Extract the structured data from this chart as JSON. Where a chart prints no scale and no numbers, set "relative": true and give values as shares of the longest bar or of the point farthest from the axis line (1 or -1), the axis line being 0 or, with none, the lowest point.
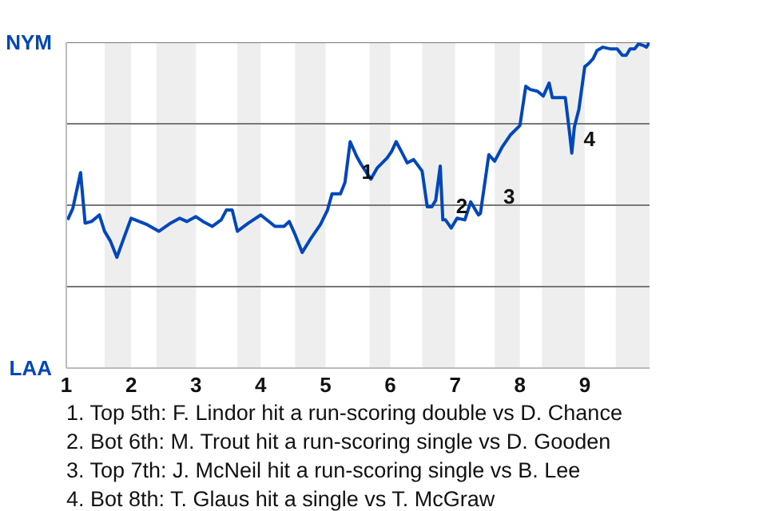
{
  "chart_data": {
    "type": "line",
    "relative": true,
    "xlim": [
      1,
      10
    ],
    "xticks": [
      1,
      2,
      3,
      4,
      5,
      6,
      7,
      8,
      9
    ],
    "marker": "none",
    "line_style": "solid",
    "ref_lines": [
      {
        "axis": "y",
        "value": 0.25,
        "color": "#777777"
      },
      {
        "axis": "y",
        "value": 0.5,
        "color": "#777777"
      },
      {
        "axis": "y",
        "value": 0.75,
        "color": "#777777"
      },
      {
        "axis": "y",
        "value": 1,
        "color": "#777777"
      }
    ],
    "bands": [
      {
        "axis": "x",
        "from": 1.59,
        "to": 2,
        "color": "#eeeeee"
      },
      {
        "axis": "x",
        "from": 2.39,
        "to": 3,
        "color": "#eeeeee"
      },
      {
        "axis": "x",
        "from": 3.64,
        "to": 4,
        "color": "#eeeeee"
      },
      {
        "axis": "x",
        "from": 4.53,
        "to": 5,
        "color": "#eeeeee"
      },
      {
        "axis": "x",
        "from": 5.68,
        "to": 6,
        "color": "#eeeeee"
      },
      {
        "axis": "x",
        "from": 6.49,
        "to": 7,
        "color": "#eeeeee"
      },
      {
        "axis": "x",
        "from": 7.61,
        "to": 8,
        "color": "#eeeeee"
      },
      {
        "axis": "x",
        "from": 8.34,
        "to": 9,
        "color": "#eeeeee"
      },
      {
        "axis": "x",
        "from": 9.48,
        "to": 10,
        "color": "#eeeeee"
      }
    ],
    "series": [
      {
        "color": "#0047bb",
        "x": [
          1.02,
          1.1,
          1.22,
          1.29,
          1.39,
          1.51,
          1.59,
          1.68,
          1.78,
          1.88,
          2.0,
          2.25,
          2.43,
          2.61,
          2.75,
          2.86,
          3.0,
          3.11,
          3.25,
          3.39,
          3.47,
          3.56,
          3.64,
          3.81,
          4.0,
          4.22,
          4.36,
          4.44,
          4.53,
          4.64,
          4.78,
          4.92,
          5.03,
          5.1,
          5.23,
          5.3,
          5.38,
          5.48,
          5.55,
          5.7,
          5.8,
          5.95,
          6.02,
          6.09,
          6.17,
          6.26,
          6.36,
          6.49,
          6.57,
          6.64,
          6.7,
          6.77,
          6.81,
          6.85,
          6.94,
          7.03,
          7.15,
          7.24,
          7.36,
          7.39,
          7.52,
          7.61,
          7.73,
          7.85,
          8.0,
          8.09,
          8.16,
          8.27,
          8.36,
          8.45,
          8.5,
          8.61,
          8.7,
          8.77,
          8.8,
          8.84,
          8.91,
          9.0,
          9.06,
          9.13,
          9.19,
          9.28,
          9.39,
          9.5,
          9.58,
          9.64,
          9.7,
          9.77,
          9.83,
          9.91,
          9.95,
          10.0
        ],
        "values": [
          0.455,
          0.49,
          0.6,
          0.445,
          0.45,
          0.47,
          0.42,
          0.39,
          0.34,
          0.395,
          0.46,
          0.44,
          0.42,
          0.445,
          0.46,
          0.45,
          0.465,
          0.45,
          0.435,
          0.455,
          0.485,
          0.485,
          0.42,
          0.445,
          0.47,
          0.435,
          0.435,
          0.45,
          0.41,
          0.355,
          0.4,
          0.44,
          0.485,
          0.535,
          0.535,
          0.57,
          0.695,
          0.65,
          0.625,
          0.58,
          0.615,
          0.645,
          0.665,
          0.695,
          0.665,
          0.63,
          0.64,
          0.605,
          0.495,
          0.495,
          0.515,
          0.62,
          0.455,
          0.455,
          0.43,
          0.46,
          0.455,
          0.51,
          0.47,
          0.475,
          0.655,
          0.635,
          0.68,
          0.715,
          0.745,
          0.865,
          0.855,
          0.85,
          0.835,
          0.875,
          0.83,
          0.83,
          0.83,
          0.715,
          0.66,
          0.74,
          0.795,
          0.925,
          0.935,
          0.95,
          0.975,
          0.985,
          0.98,
          0.98,
          0.96,
          0.96,
          0.98,
          0.98,
          0.995,
          0.99,
          0.985,
          1.0
        ]
      }
    ],
    "annotations": [
      "NYM",
      "LAA",
      {
        "text": "1",
        "x": 5.48,
        "y": 0.61
      },
      {
        "text": "2",
        "x": 6.94,
        "y": 0.505
      },
      {
        "text": "3",
        "x": 7.67,
        "y": 0.535
      },
      {
        "text": "4",
        "x": 8.91,
        "y": 0.71
      },
      "1. Top 5th: F. Lindor hit a run-scoring double vs D. Chance",
      "2. Bot 6th: M. Trout hit a run-scoring single vs D. Gooden",
      "3. Top 7th: J. McNeil hit a run-scoring single vs B. Lee",
      "4. Bot 8th: T. Glaus hit a single vs T. McGraw"
    ]
  }
}
